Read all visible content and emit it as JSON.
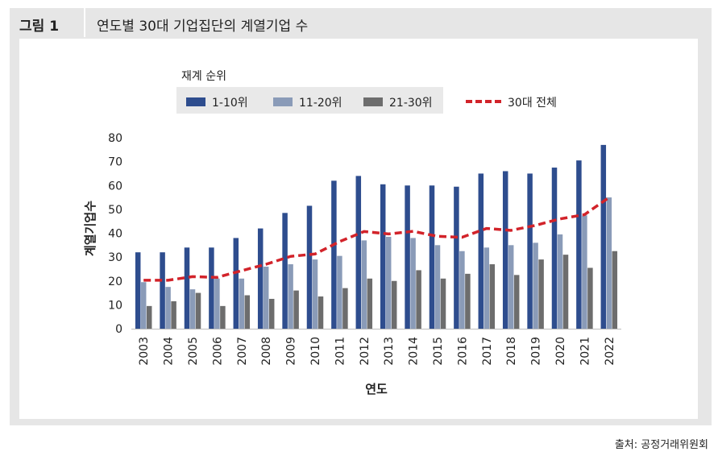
{
  "header": {
    "figure_label": "그림 1",
    "title": "연도별 30대 기업집단의 계열기업 수"
  },
  "legend": {
    "title": "재계 순위",
    "items": [
      "1-10위",
      "11-20위",
      "21-30위"
    ],
    "line_label": "30대 전체"
  },
  "source": "출처: 공정거래위원회",
  "colors": {
    "rank_1_10": "#2e4d8e",
    "rank_11_20": "#8a9bb8",
    "rank_21_30": "#6d6d6d",
    "total_line": "#d2232a"
  },
  "chart_data": {
    "type": "bar",
    "title": "연도별 30대 기업집단의 계열기업 수",
    "xlabel": "연도",
    "ylabel": "계열기업수",
    "ylim": [
      0,
      80
    ],
    "yticks": [
      0,
      10,
      20,
      30,
      40,
      50,
      60,
      70,
      80
    ],
    "grid": false,
    "legend_position": "top",
    "categories": [
      "2003",
      "2004",
      "2005",
      "2006",
      "2007",
      "2008",
      "2009",
      "2010",
      "2011",
      "2012",
      "2013",
      "2014",
      "2015",
      "2016",
      "2017",
      "2018",
      "2019",
      "2020",
      "2021",
      "2022"
    ],
    "series": [
      {
        "name": "1-10위",
        "type": "bar",
        "values": [
          32,
          32,
          34,
          34,
          38,
          42,
          48.5,
          51.5,
          62,
          64,
          60.5,
          60,
          60,
          59.5,
          65,
          66,
          65,
          67.5,
          70.5,
          77
        ]
      },
      {
        "name": "11-20위",
        "type": "bar",
        "values": [
          19.5,
          17.5,
          16.5,
          21,
          21,
          26,
          27,
          29,
          30.5,
          37,
          38.5,
          38,
          35,
          32.5,
          34,
          35,
          36,
          39.5,
          47.5,
          55
        ]
      },
      {
        "name": "21-30위",
        "type": "bar",
        "values": [
          9.5,
          11.5,
          15,
          9.5,
          14,
          12.5,
          16,
          13.5,
          17,
          21,
          20,
          24.5,
          21,
          23,
          27,
          22.5,
          29,
          31,
          25.5,
          32.5
        ]
      },
      {
        "name": "30대 전체",
        "type": "line",
        "values": [
          20.3,
          20.3,
          21.8,
          21.5,
          24.3,
          27,
          30.3,
          31.3,
          36.5,
          40.7,
          39.7,
          40.8,
          38.7,
          38.3,
          42,
          41.2,
          43.3,
          46,
          47.8,
          55
        ]
      }
    ]
  }
}
